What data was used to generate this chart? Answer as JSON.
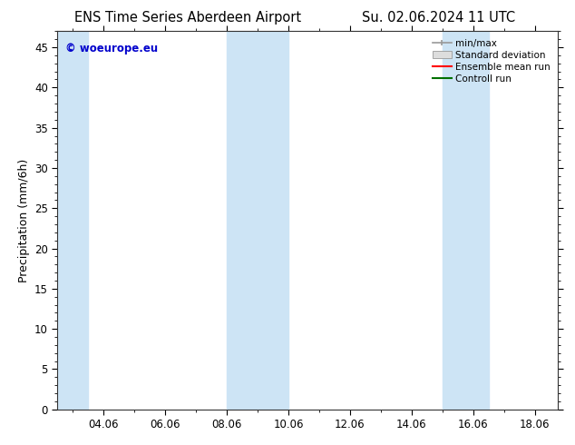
{
  "title_left": "ENS Time Series Aberdeen Airport",
  "title_right": "Su. 02.06.2024 11 UTC",
  "ylabel": "Precipitation (mm/6h)",
  "watermark": "© woeurope.eu",
  "watermark_color": "#0000cc",
  "background_color": "#ffffff",
  "plot_bg_color": "#ffffff",
  "xlim_start": 2.5,
  "xlim_end": 18.75,
  "ylim": [
    0,
    47
  ],
  "yticks": [
    0,
    5,
    10,
    15,
    20,
    25,
    30,
    35,
    40,
    45
  ],
  "xtick_labels": [
    "04.06",
    "06.06",
    "08.06",
    "10.06",
    "12.06",
    "14.06",
    "16.06",
    "18.06"
  ],
  "xtick_positions": [
    4,
    6,
    8,
    10,
    12,
    14,
    16,
    18
  ],
  "shaded_bands": [
    {
      "x_start": 2.5,
      "x_end": 3.5
    },
    {
      "x_start": 8.0,
      "x_end": 10.0
    },
    {
      "x_start": 15.0,
      "x_end": 16.5
    }
  ],
  "shade_color": "#cde4f5",
  "legend_items": [
    {
      "label": "min/max",
      "color": "#aaaaaa",
      "type": "errorbar"
    },
    {
      "label": "Standard deviation",
      "color": "#cccccc",
      "type": "fill"
    },
    {
      "label": "Ensemble mean run",
      "color": "#ff0000",
      "type": "line"
    },
    {
      "label": "Controll run",
      "color": "#007000",
      "type": "line"
    }
  ],
  "title_fontsize": 10.5,
  "tick_fontsize": 8.5,
  "ylabel_fontsize": 9,
  "legend_fontsize": 7.5
}
